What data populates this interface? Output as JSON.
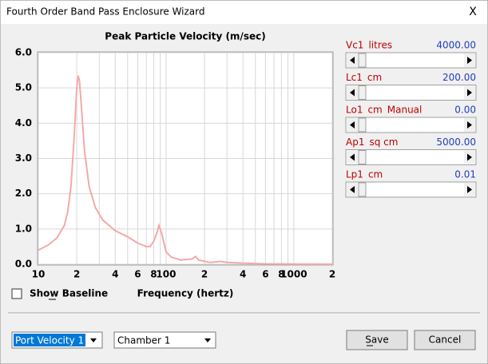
{
  "window": {
    "title": "Fourth Order Band Pass Enclosure Wizard",
    "close": "X"
  },
  "chart_data": {
    "type": "line",
    "title": "Peak Particle Velocity (m/sec)",
    "x_label": "Frequency (hertz)",
    "log_x": true,
    "grid": true,
    "color": "#f4a9a9",
    "xlim": [
      10,
      2000
    ],
    "ylim": [
      0,
      6
    ],
    "xticks": [
      10,
      {
        "value": 20,
        "label": "2"
      },
      {
        "value": 40,
        "label": "4"
      },
      {
        "value": 60,
        "label": "6"
      },
      {
        "value": 80,
        "label": "8"
      },
      100,
      {
        "value": 200,
        "label": "2"
      },
      {
        "value": 400,
        "label": "4"
      },
      {
        "value": 600,
        "label": "6"
      },
      {
        "value": 800,
        "label": "8"
      },
      1000,
      {
        "value": 2000,
        "label": "2"
      }
    ],
    "x_minor_gridlines": [
      30,
      50,
      70,
      90,
      300,
      500,
      700,
      900
    ],
    "yticks": [
      {
        "value": 0,
        "label": "0.0"
      },
      {
        "value": 1,
        "label": "1.0"
      },
      {
        "value": 2,
        "label": "2.0"
      },
      {
        "value": 3,
        "label": "3.0"
      },
      {
        "value": 4,
        "label": "4.0"
      },
      {
        "value": 5,
        "label": "5.0"
      },
      {
        "value": 6,
        "label": "6.0"
      }
    ],
    "x": [
      10,
      12,
      14,
      16,
      17,
      18,
      19,
      20,
      20.5,
      21,
      22,
      23,
      25,
      28,
      32,
      40,
      50,
      60,
      70,
      75,
      80,
      85,
      88,
      92,
      100,
      110,
      130,
      160,
      170,
      180,
      220,
      270,
      300,
      400,
      600,
      2000
    ],
    "values": [
      0.4,
      0.55,
      0.75,
      1.1,
      1.5,
      2.2,
      3.5,
      5.0,
      5.35,
      5.2,
      4.2,
      3.2,
      2.2,
      1.6,
      1.25,
      0.95,
      0.78,
      0.6,
      0.5,
      0.5,
      0.65,
      0.9,
      1.1,
      0.9,
      0.35,
      0.2,
      0.12,
      0.15,
      0.22,
      0.12,
      0.05,
      0.08,
      0.05,
      0.03,
      0.01,
      0
    ]
  },
  "parameters": [
    {
      "name": "Vc1",
      "unit": "litres",
      "value": "4000.00"
    },
    {
      "name": "Lc1",
      "unit": "cm",
      "value": "200.00"
    },
    {
      "name": "Lo1",
      "unit": "cm",
      "mode": "Manual",
      "value": "0.00"
    },
    {
      "name": "Ap1",
      "unit": "sq cm",
      "value": "5000.00"
    },
    {
      "name": "Lp1",
      "unit": "cm",
      "value": "0.01"
    }
  ],
  "controls": {
    "show_baseline": "Show Baseline",
    "plot_select": "Port Velocity 1",
    "chamber_select": "Chamber 1",
    "save": "Save",
    "cancel": "Cancel"
  }
}
